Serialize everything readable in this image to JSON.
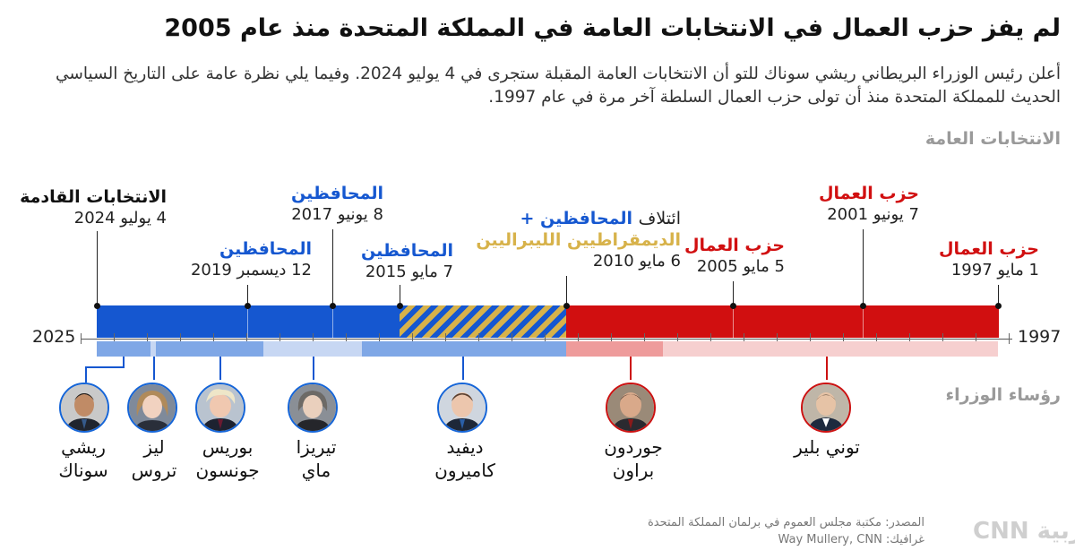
{
  "header": {
    "title": "لم يفز حزب العمال في الانتخابات العامة في المملكة المتحدة منذ عام 2005",
    "subtitle": "أعلن رئيس الوزراء البريطاني ريشي سوناك للتو أن الانتخابات العامة المقبلة ستجرى في 4 يوليو 2024. وفيما يلي نظرة عامة على التاريخ السياسي الحديث للمملكة المتحدة منذ أن تولى حزب العمال السلطة آخر مرة في عام 1997."
  },
  "sections": {
    "elections": "الانتخابات العامة",
    "prime_ministers": "رؤساء الوزراء"
  },
  "axis": {
    "start_year": "1997",
    "end_year": "2025"
  },
  "colors": {
    "conservative": "#1557d0",
    "labour": "#d10f10",
    "coalition_gold": "#d7b24a",
    "conservative_light": "#7fa7e6",
    "conservative_lighter": "#c7d7f3",
    "labour_light": "#ee9b9b",
    "labour_lighter": "#f6cfcf"
  },
  "elections": [
    {
      "party": "حزب العمال",
      "date": "1 مايو 1997",
      "party_type": "labour"
    },
    {
      "party": "حزب العمال",
      "date": "7 يونيو 2001",
      "party_type": "labour"
    },
    {
      "party": "حزب العمال",
      "date": "5 مايو 2005",
      "party_type": "labour"
    },
    {
      "prefix": "ائتلاف",
      "party": "المحافظين +",
      "party_line2": "الديمقراطيين الليبراليين",
      "date": "6 مايو 2010",
      "party_type": "coalition"
    },
    {
      "party": "المحافظين",
      "date": "7 مايو 2015",
      "party_type": "conservative"
    },
    {
      "party": "المحافظين",
      "date": "8 يونيو 2017",
      "party_type": "conservative"
    },
    {
      "party": "المحافظين",
      "date": "12 ديسمبر 2019",
      "party_type": "conservative"
    },
    {
      "party": "الانتخابات القادمة",
      "date": "4 يوليو 2024",
      "party_type": "upcoming"
    }
  ],
  "prime_ministers": [
    {
      "name_line1": "توني بلير",
      "name_line2": "",
      "party_type": "labour"
    },
    {
      "name_line1": "جوردون",
      "name_line2": "براون",
      "party_type": "labour"
    },
    {
      "name_line1": "ديفيد",
      "name_line2": "كاميرون",
      "party_type": "conservative"
    },
    {
      "name_line1": "تيريزا",
      "name_line2": "ماي",
      "party_type": "conservative"
    },
    {
      "name_line1": "بوريس",
      "name_line2": "جونسون",
      "party_type": "conservative"
    },
    {
      "name_line1": "ليز",
      "name_line2": "تروس",
      "party_type": "conservative"
    },
    {
      "name_line1": "ريشي",
      "name_line2": "سوناك",
      "party_type": "conservative"
    }
  ],
  "footer": {
    "source": "المصدر: مكتبة مجلس العموم في برلمان المملكة المتحدة",
    "graphic": "غرافيك: Way Mullery, CNN",
    "logo": "CNN بالعربية"
  }
}
